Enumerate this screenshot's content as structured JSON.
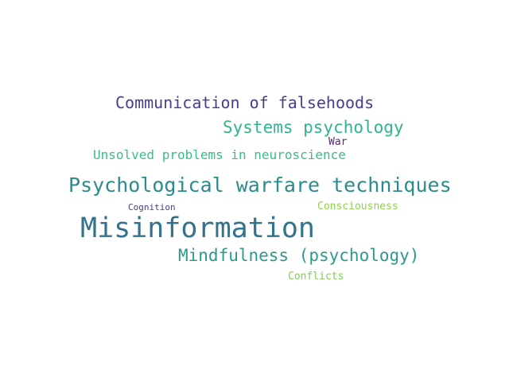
{
  "word_cloud": {
    "words": [
      {
        "id": "communication-of-falsehoods",
        "text": "Communication of falsehoods",
        "color": "#4a3d8f"
      },
      {
        "id": "systems-psychology",
        "text": "Systems psychology",
        "color": "#30b58e"
      },
      {
        "id": "war",
        "text": "War",
        "color": "#5a2a78"
      },
      {
        "id": "unsolved-problems",
        "text": "Unsolved problems in neuroscience",
        "color": "#3bbd87"
      },
      {
        "id": "psychological-warfare",
        "text": "Psychological warfare techniques",
        "color": "#2c8b8c"
      },
      {
        "id": "cognition",
        "text": "Cognition",
        "color": "#44418a"
      },
      {
        "id": "consciousness",
        "text": "Consciousness",
        "color": "#8fd44a"
      },
      {
        "id": "misinformation",
        "text": "Misinformation",
        "color": "#32728c"
      },
      {
        "id": "mindfulness",
        "text": "Mindfulness (psychology)",
        "color": "#2a9a8a"
      },
      {
        "id": "conflicts",
        "text": "Conflicts",
        "color": "#7fce55"
      }
    ]
  }
}
